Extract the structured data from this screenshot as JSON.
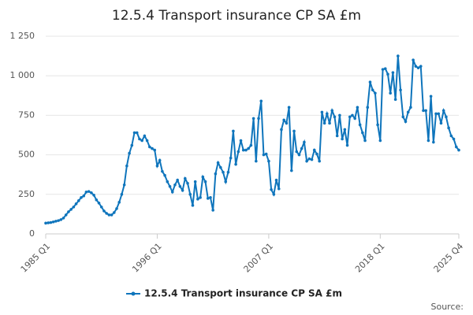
{
  "chart_data": {
    "type": "line",
    "title": "12.5.4 Transport insurance CP SA £m",
    "source": "Source:",
    "categories": [
      "1985 Q1",
      null,
      null,
      null,
      null,
      null,
      null,
      null,
      null,
      null,
      null,
      null,
      null,
      null,
      null,
      null,
      null,
      null,
      null,
      null,
      null,
      null,
      null,
      null,
      null,
      null,
      null,
      null,
      null,
      null,
      null,
      null,
      null,
      null,
      null,
      null,
      null,
      null,
      null,
      null,
      null,
      null,
      null,
      null,
      "1996 Q1",
      null,
      null,
      null,
      null,
      null,
      null,
      null,
      null,
      null,
      null,
      null,
      null,
      null,
      null,
      null,
      null,
      null,
      null,
      null,
      null,
      null,
      null,
      null,
      null,
      null,
      null,
      null,
      null,
      null,
      null,
      null,
      null,
      null,
      null,
      null,
      null,
      null,
      null,
      null,
      null,
      null,
      null,
      null,
      "2007 Q1",
      null,
      null,
      null,
      null,
      null,
      null,
      null,
      null,
      null,
      null,
      null,
      null,
      null,
      null,
      null,
      null,
      null,
      null,
      null,
      null,
      null,
      null,
      null,
      null,
      null,
      null,
      null,
      null,
      null,
      null,
      null,
      null,
      null,
      null,
      null,
      null,
      null,
      null,
      null,
      null,
      null,
      null,
      null,
      "2018 Q1",
      null,
      null,
      null,
      null,
      null,
      null,
      null,
      null,
      null,
      null,
      null,
      null,
      null,
      null,
      null,
      null,
      null,
      null,
      null,
      null,
      null,
      null,
      null,
      null,
      null,
      null,
      null,
      null,
      null,
      null,
      "2025 Q4"
    ],
    "series": [
      {
        "name": "12.5.4 Transport insurance CP SA £m",
        "color": "#0f75bc",
        "values": [
          68,
          70,
          72,
          76,
          80,
          84,
          90,
          100,
          120,
          140,
          155,
          170,
          190,
          210,
          230,
          240,
          265,
          268,
          260,
          245,
          215,
          195,
          170,
          145,
          130,
          120,
          120,
          135,
          160,
          200,
          250,
          310,
          430,
          510,
          560,
          640,
          640,
          600,
          590,
          620,
          590,
          550,
          540,
          530,
          430,
          465,
          395,
          370,
          330,
          300,
          265,
          310,
          340,
          300,
          275,
          350,
          320,
          250,
          180,
          330,
          220,
          230,
          360,
          330,
          225,
          230,
          150,
          380,
          450,
          420,
          390,
          330,
          390,
          480,
          650,
          440,
          520,
          590,
          530,
          530,
          540,
          560,
          730,
          460,
          730,
          840,
          500,
          505,
          460,
          280,
          250,
          340,
          285,
          660,
          720,
          700,
          800,
          400,
          650,
          520,
          500,
          540,
          580,
          460,
          475,
          470,
          530,
          505,
          460,
          770,
          700,
          760,
          700,
          780,
          740,
          620,
          750,
          600,
          660,
          560,
          740,
          750,
          730,
          800,
          690,
          640,
          590,
          800,
          960,
          910,
          890,
          690,
          590,
          1040,
          1045,
          1010,
          890,
          1020,
          850,
          1125,
          910,
          740,
          710,
          770,
          800,
          1100,
          1060,
          1050,
          1060,
          780,
          780,
          590,
          870,
          580,
          760,
          760,
          700,
          780,
          740,
          670,
          620,
          600,
          550,
          530
        ]
      }
    ],
    "ylim": [
      0,
      1250
    ],
    "yticks": [
      0,
      250,
      500,
      750,
      {
        "value": 1000,
        "label": "1 000"
      },
      {
        "value": 1250,
        "label": "1 250"
      }
    ],
    "grid": true,
    "legend": "bottom"
  }
}
